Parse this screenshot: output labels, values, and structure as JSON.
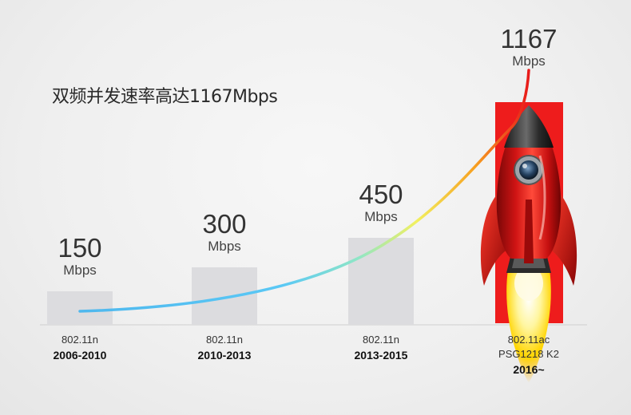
{
  "headline": "双频并发速率高达1167Mbps",
  "colors": {
    "bar": "#dcdcdf",
    "rocket_red": "#ee1c1c",
    "axis": "#cfcfcf"
  },
  "chart_data": {
    "type": "bar",
    "unit": "Mbps",
    "categories": [
      {
        "standard": "802.11n",
        "product": "",
        "years": "2006-2010"
      },
      {
        "standard": "802.11n",
        "product": "",
        "years": "2010-2013"
      },
      {
        "standard": "802.11n",
        "product": "",
        "years": "2013-2015"
      },
      {
        "standard": "802.11ac",
        "product": "PSG1218 K2",
        "years": "2016~"
      }
    ],
    "values": [
      150,
      300,
      450,
      1167
    ],
    "value_labels": [
      "150",
      "300",
      "450",
      "1167"
    ]
  }
}
